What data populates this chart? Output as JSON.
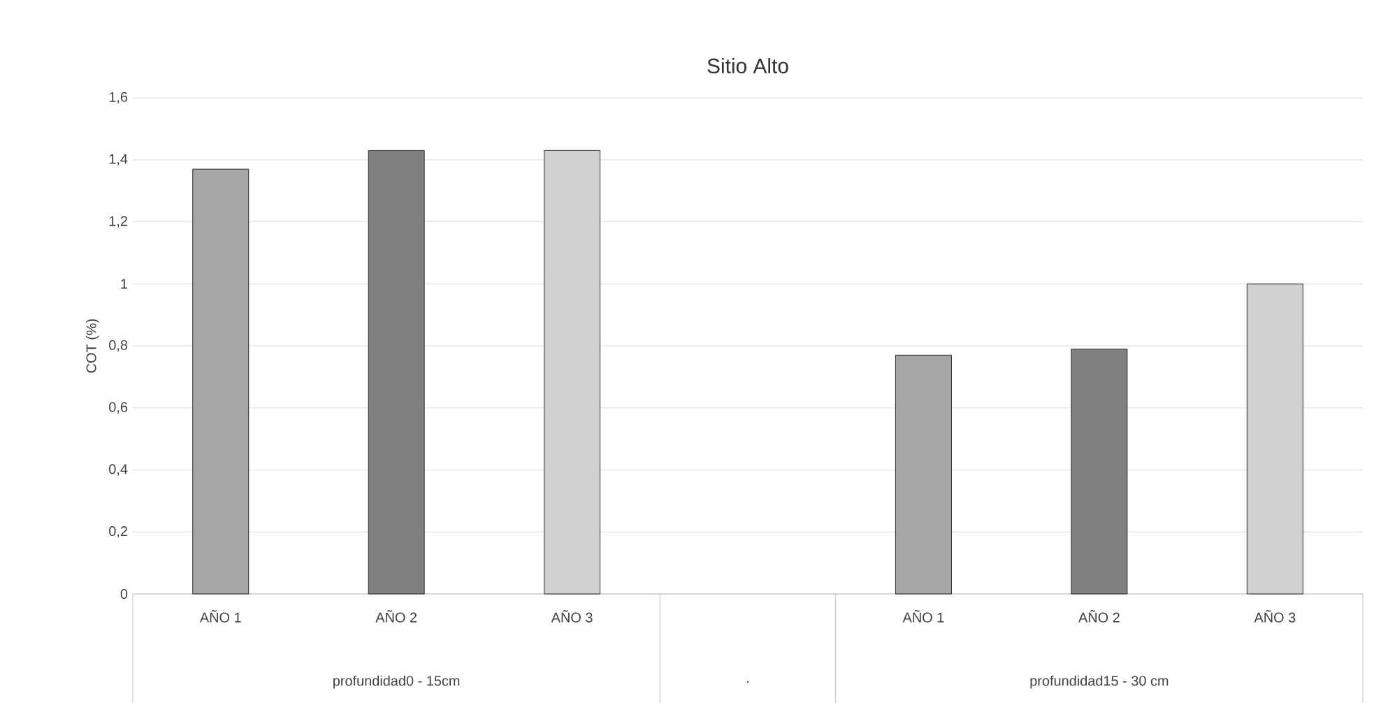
{
  "chart_data": {
    "type": "bar",
    "title": "Sitio Alto",
    "ylabel": "COT (%)",
    "categories": [
      "AÑO 1",
      "AÑO 2",
      "AÑO 3",
      null,
      "AÑO 1",
      "AÑO 2",
      "AÑO 3"
    ],
    "values": [
      1.37,
      1.43,
      1.43,
      null,
      0.77,
      0.79,
      1.0
    ],
    "colors": [
      "#a6a6a6",
      "#808080",
      "#d0d0d0",
      null,
      "#a6a6a6",
      "#808080",
      "#d0d0d0"
    ],
    "ylim": [
      0,
      1.6
    ],
    "yticks": [
      0,
      {
        "value": 0.2,
        "label": "0,2"
      },
      {
        "value": 0.4,
        "label": "0,4"
      },
      {
        "value": 0.6,
        "label": "0,6"
      },
      {
        "value": 0.8,
        "label": "0,8"
      },
      1,
      {
        "value": 1.2,
        "label": "1,2"
      },
      {
        "value": 1.4,
        "label": "1,4"
      },
      {
        "value": 1.6,
        "label": "1,6"
      }
    ],
    "grid": "y",
    "annotations": [
      "profundidad0 - 15cm",
      ".",
      "profundidad15 - 30 cm"
    ]
  }
}
